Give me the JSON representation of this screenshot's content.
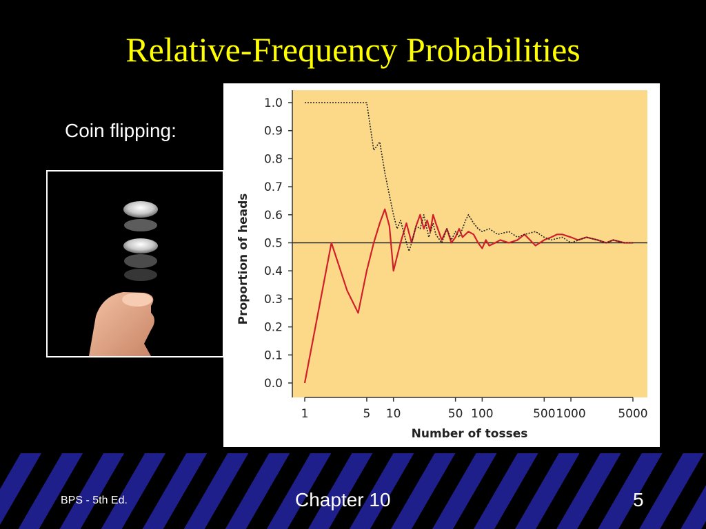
{
  "slide": {
    "title": "Relative-Frequency Probabilities",
    "subtitle": "Coin flipping:",
    "footer_left": "BPS - 5th Ed.",
    "footer_center": "Chapter 10",
    "footer_right": "5"
  },
  "colors": {
    "title": "#ffff00",
    "background": "#000000",
    "plot_background": "#fbd988",
    "series_red": "#d01f2a",
    "series_dotted": "#222222"
  },
  "chart_data": {
    "type": "line",
    "xlabel": "Number of tosses",
    "ylabel": "Proportion of  heads",
    "x_scale": "log",
    "xlim": [
      1,
      5000
    ],
    "ylim": [
      0,
      1
    ],
    "xticks": [
      1,
      5,
      10,
      50,
      100,
      500,
      1000,
      5000
    ],
    "yticks": [
      "0.0",
      "0.1",
      "0.2",
      "0.3",
      "0.4",
      "0.5",
      "0.6",
      "0.7",
      "0.8",
      "0.9",
      "1.0"
    ],
    "reference_line": 0.5,
    "grid": false,
    "legend": "none",
    "series": [
      {
        "style": "solid-red",
        "x": [
          1,
          2,
          3,
          4,
          5,
          6,
          7,
          8,
          9,
          10,
          12,
          14,
          16,
          18,
          20,
          22,
          24,
          26,
          28,
          30,
          35,
          40,
          45,
          50,
          55,
          60,
          70,
          80,
          90,
          100,
          110,
          120,
          140,
          160,
          200,
          250,
          300,
          400,
          500,
          600,
          700,
          800,
          1000,
          1200,
          1500,
          2000,
          2500,
          3000,
          4000,
          5000
        ],
        "y": [
          0.0,
          0.5,
          0.33,
          0.25,
          0.4,
          0.5,
          0.57,
          0.62,
          0.56,
          0.4,
          0.5,
          0.57,
          0.5,
          0.56,
          0.6,
          0.55,
          0.58,
          0.54,
          0.6,
          0.57,
          0.51,
          0.55,
          0.5,
          0.52,
          0.55,
          0.52,
          0.54,
          0.53,
          0.5,
          0.48,
          0.51,
          0.49,
          0.5,
          0.51,
          0.5,
          0.51,
          0.53,
          0.49,
          0.51,
          0.52,
          0.53,
          0.53,
          0.52,
          0.51,
          0.52,
          0.51,
          0.5,
          0.51,
          0.5,
          0.5
        ]
      },
      {
        "style": "dotted-black",
        "x": [
          1,
          2,
          3,
          4,
          5,
          6,
          7,
          8,
          9,
          10,
          11,
          12,
          13,
          14,
          15,
          16,
          18,
          20,
          22,
          25,
          28,
          30,
          35,
          40,
          45,
          50,
          55,
          60,
          65,
          70,
          80,
          90,
          100,
          120,
          150,
          200,
          250,
          300,
          400,
          500,
          600,
          800,
          1000,
          1500,
          2000,
          2500,
          3000,
          4000,
          5000
        ],
        "y": [
          1.0,
          1.0,
          1.0,
          1.0,
          1.0,
          0.83,
          0.86,
          0.75,
          0.67,
          0.6,
          0.55,
          0.58,
          0.54,
          0.5,
          0.47,
          0.5,
          0.56,
          0.55,
          0.6,
          0.52,
          0.57,
          0.53,
          0.5,
          0.55,
          0.51,
          0.54,
          0.52,
          0.55,
          0.58,
          0.6,
          0.57,
          0.55,
          0.54,
          0.55,
          0.53,
          0.54,
          0.52,
          0.53,
          0.54,
          0.52,
          0.51,
          0.52,
          0.5,
          0.52,
          0.51,
          0.5,
          0.51,
          0.5,
          0.5
        ]
      }
    ]
  }
}
